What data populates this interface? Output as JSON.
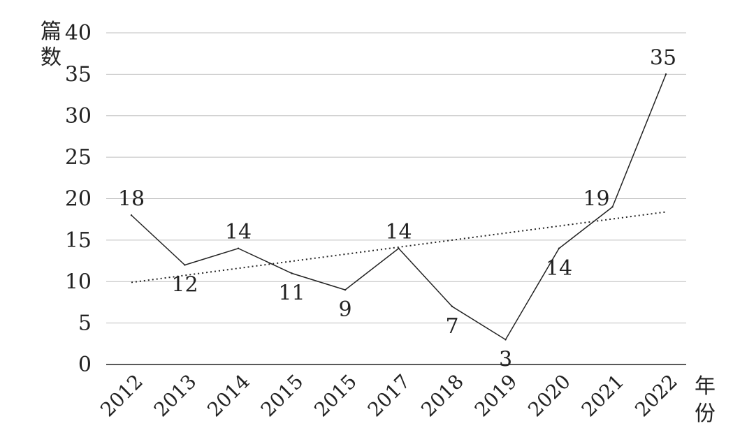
{
  "chart_data": {
    "type": "line",
    "title": "",
    "ylabel": "篇数",
    "xlabel": "年份",
    "categories": [
      "2012",
      "2013",
      "2014",
      "2015",
      "2015",
      "2017",
      "2018",
      "2019",
      "2020",
      "2021",
      "2022"
    ],
    "series": [
      {
        "values": [
          18,
          12,
          14,
          11,
          9,
          14,
          7,
          3,
          14,
          19,
          35
        ]
      }
    ],
    "data_labels": [
      "18",
      "12",
      "14",
      "11",
      "9",
      "14",
      "7",
      "3",
      "14",
      "19",
      "35"
    ],
    "trendline": {
      "type": "linear",
      "style": "dotted",
      "start": 9.9,
      "end": 18.4
    },
    "ylim": [
      0,
      40
    ],
    "yticks": [
      "0",
      "5",
      "10",
      "15",
      "20",
      "25",
      "30",
      "35",
      "40"
    ],
    "grid": true,
    "legend": "none",
    "colors": {
      "line": "#222222",
      "grid": "#bfbfbf",
      "axis": "#222222",
      "trend": "#222222"
    }
  }
}
